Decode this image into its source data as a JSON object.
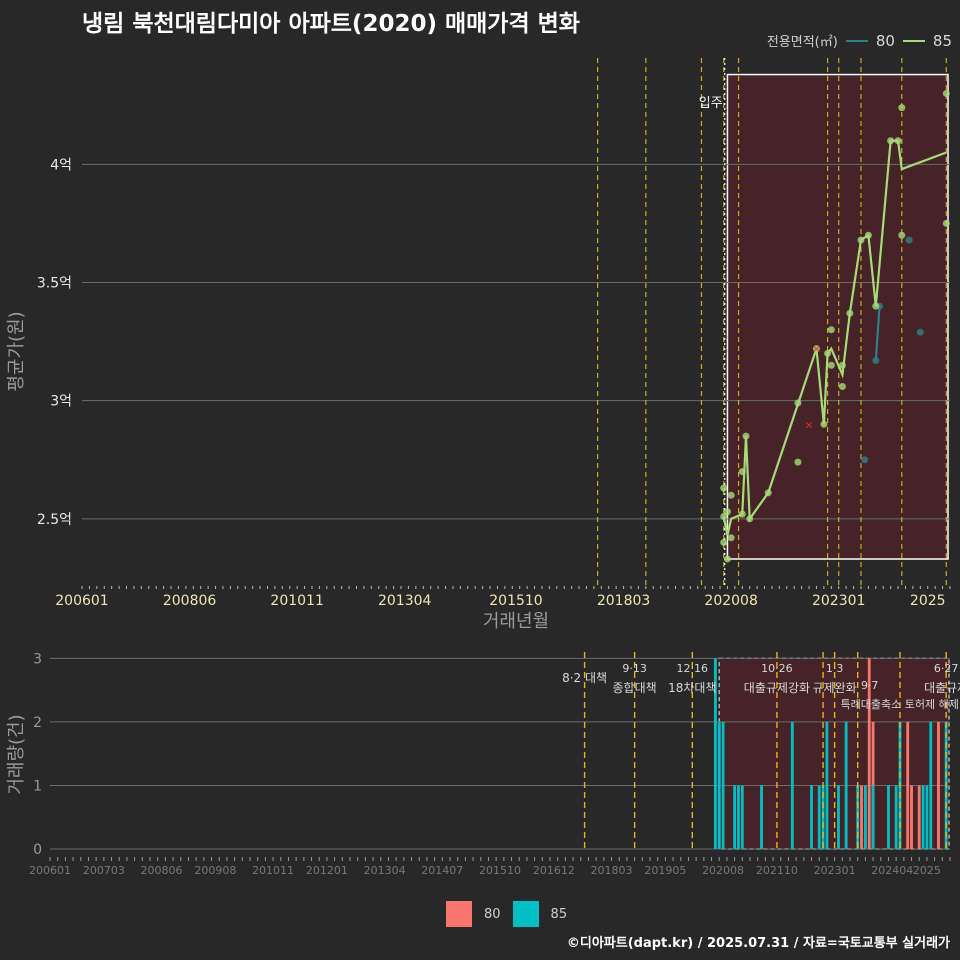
{
  "title": "냉림 북천대림다미아 아파트(2020) 매매가격 변화",
  "caption": "©디아파트(dapt.kr) / 2025.07.31 / 자료=국토교통부 실거래가",
  "colors": {
    "s80_line": "#2f7f88",
    "s85_line": "#a6db7a",
    "s80_bar": "#f8766d",
    "s85_bar": "#00bfc4",
    "accent": "#e0b81c",
    "shade": "#4a2226"
  },
  "legend_top": {
    "label": "전용면적(㎡)",
    "items": [
      "80",
      "85"
    ]
  },
  "legend_bottom": {
    "items": [
      "80",
      "85"
    ]
  },
  "chart_data": [
    {
      "type": "line",
      "title": "냉림 북천대림다미아 아파트(2020) 매매가격 변화",
      "xlabel": "거래년월",
      "ylabel": "평균가(원)",
      "x_range": [
        "200601",
        "202507"
      ],
      "ylim": [
        2.22,
        4.45
      ],
      "y_ticks": [
        {
          "v": 2.5,
          "label": "2.5억"
        },
        {
          "v": 3.0,
          "label": "3억"
        },
        {
          "v": 3.5,
          "label": "3.5억"
        },
        {
          "v": 4.0,
          "label": "4억"
        }
      ],
      "x_ticks": [
        "200601",
        "200806",
        "201011",
        "201304",
        "201510",
        "201803",
        "202008",
        "202301",
        "2025"
      ],
      "annotation": "입주",
      "highlight_from": "202007",
      "series": [
        {
          "name": "80",
          "points": [
            [
              "202311",
              3.17
            ],
            [
              "202312",
              3.4
            ]
          ],
          "dots": [
            [
              "202308",
              2.75
            ],
            [
              "202311",
              3.17
            ],
            [
              "202312",
              3.4
            ],
            [
              "202408",
              3.68
            ],
            [
              "202411",
              3.29
            ]
          ]
        },
        {
          "name": "85",
          "points": [
            [
              "202006",
              2.51
            ],
            [
              "202007",
              2.43
            ],
            [
              "202008",
              2.5
            ],
            [
              "202011",
              2.52
            ],
            [
              "202012",
              2.85
            ],
            [
              "202101",
              2.5
            ],
            [
              "202106",
              2.61
            ],
            [
              "202207",
              3.22
            ],
            [
              "202209",
              2.9
            ],
            [
              "202210",
              3.2
            ],
            [
              "202211",
              3.22
            ],
            [
              "202302",
              3.11
            ],
            [
              "202304",
              3.37
            ],
            [
              "202307",
              3.68
            ],
            [
              "202309",
              3.7
            ],
            [
              "202311",
              3.4
            ],
            [
              "202403",
              4.1
            ],
            [
              "202405",
              4.1
            ],
            [
              "202406",
              3.98
            ],
            [
              "202506",
              4.05
            ]
          ],
          "dots": [
            [
              "202006",
              2.63
            ],
            [
              "202006",
              2.51
            ],
            [
              "202006",
              2.4
            ],
            [
              "202007",
              2.53
            ],
            [
              "202007",
              2.33
            ],
            [
              "202008",
              2.6
            ],
            [
              "202008",
              2.42
            ],
            [
              "202011",
              2.7
            ],
            [
              "202011",
              2.52
            ],
            [
              "202012",
              2.85
            ],
            [
              "202101",
              2.5
            ],
            [
              "202106",
              2.61
            ],
            [
              "202202",
              2.74
            ],
            [
              "202202",
              2.99
            ],
            [
              "202207",
              3.22
            ],
            [
              "202209",
              2.9
            ],
            [
              "202210",
              3.2
            ],
            [
              "202211",
              3.3
            ],
            [
              "202211",
              3.15
            ],
            [
              "202302",
              3.06
            ],
            [
              "202302",
              3.15
            ],
            [
              "202304",
              3.37
            ],
            [
              "202307",
              3.68
            ],
            [
              "202309",
              3.7
            ],
            [
              "202311",
              3.4
            ],
            [
              "202403",
              4.1
            ],
            [
              "202405",
              4.1
            ],
            [
              "202406",
              4.24
            ],
            [
              "202406",
              3.7
            ],
            [
              "202506",
              3.75
            ],
            [
              "202506",
              4.3
            ]
          ]
        }
      ],
      "outliers": [
        [
          "202205",
          2.9
        ],
        [
          "202207",
          3.22
        ]
      ],
      "policy_lines": [
        "201708",
        "201809",
        "201912",
        "202006",
        "202010",
        "202210",
        "202301",
        "202307",
        "202406",
        "202506"
      ]
    },
    {
      "type": "bar",
      "xlabel": "",
      "ylabel": "거래량(건)",
      "x_range": [
        "200601",
        "202507"
      ],
      "ylim": [
        0,
        3
      ],
      "y_ticks": [
        "0",
        "1",
        "2",
        "3"
      ],
      "x_ticks": [
        "200601",
        "200703",
        "200806",
        "200908",
        "201011",
        "201201",
        "201304",
        "201407",
        "201510",
        "201612",
        "201803",
        "201905",
        "202008",
        "202110",
        "202301",
        "202404",
        "2025"
      ],
      "series": [
        {
          "name": "80",
          "bars": [
            [
              "202308",
              1
            ],
            [
              "202310",
              3
            ],
            [
              "202311",
              2
            ],
            [
              "202408",
              2
            ],
            [
              "202409",
              1
            ],
            [
              "202411",
              1
            ],
            [
              "202504",
              2
            ]
          ]
        },
        {
          "name": "85",
          "bars": [
            [
              "202006",
              3
            ],
            [
              "202007",
              2
            ],
            [
              "202008",
              2
            ],
            [
              "202011",
              1
            ],
            [
              "202012",
              1
            ],
            [
              "202101",
              1
            ],
            [
              "202106",
              1
            ],
            [
              "202202",
              2
            ],
            [
              "202207",
              1
            ],
            [
              "202209",
              1
            ],
            [
              "202210",
              1
            ],
            [
              "202211",
              2
            ],
            [
              "202302",
              1
            ],
            [
              "202304",
              2
            ],
            [
              "202307",
              1
            ],
            [
              "202309",
              1
            ],
            [
              "202311",
              1
            ],
            [
              "202403",
              1
            ],
            [
              "202405",
              1
            ],
            [
              "202406",
              2
            ],
            [
              "202412",
              1
            ],
            [
              "202501",
              1
            ],
            [
              "202502",
              2
            ],
            [
              "202506",
              2
            ]
          ]
        }
      ],
      "highlight_from": "202007",
      "policy_lines": [
        "201708",
        "201809",
        "201912",
        "202110",
        "202210",
        "202301",
        "202307",
        "202406",
        "202506"
      ],
      "policies": [
        {
          "at": "201708",
          "date": "8·2 대책",
          "text": ""
        },
        {
          "at": "201809",
          "date": "9·13",
          "text": "종합대책"
        },
        {
          "at": "201912",
          "date": "12·16",
          "text": "18차대책"
        },
        {
          "at": "202110",
          "date": "10·26",
          "text": "대출규제강화"
        },
        {
          "at": "202301",
          "date": "1·3",
          "text": "규제완화"
        },
        {
          "at": "202307",
          "date": "9·7",
          "text": "특례대출축소 토허제 해제"
        },
        {
          "at": "202506",
          "date": "6·27",
          "text": "대출규제"
        }
      ]
    }
  ]
}
